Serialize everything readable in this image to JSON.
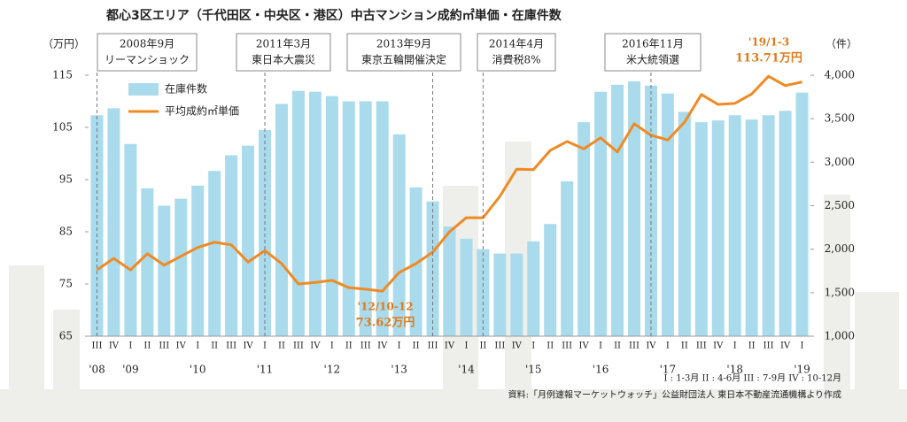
{
  "chart_data": {
    "type": "bar-line",
    "title": "都心3区エリア（千代田区・中央区・港区）中古マンション成約㎡単価・在庫件数",
    "y_unit": "（万円）",
    "y2_unit": "（件）",
    "categories": [
      "III",
      "IV",
      "I",
      "II",
      "III",
      "IV",
      "I",
      "II",
      "III",
      "IV",
      "I",
      "II",
      "III",
      "IV",
      "I",
      "II",
      "III",
      "IV",
      "I",
      "II",
      "III",
      "IV",
      "I",
      "II",
      "III",
      "IV",
      "I",
      "II",
      "III",
      "IV",
      "I",
      "II",
      "III",
      "IV",
      "I",
      "II",
      "III",
      "IV",
      "I",
      "II",
      "III",
      "IV",
      "I"
    ],
    "year_labels": [
      "'08",
      null,
      "'09",
      null,
      null,
      null,
      "'10",
      null,
      null,
      null,
      "'11",
      null,
      null,
      null,
      "'12",
      null,
      null,
      null,
      "'13",
      null,
      null,
      null,
      "'14",
      null,
      null,
      null,
      "'15",
      null,
      null,
      null,
      "'16",
      null,
      null,
      null,
      "'17",
      null,
      null,
      null,
      "'18",
      null,
      null,
      null,
      "'19"
    ],
    "series": [
      {
        "name": "在庫件数",
        "type": "bar",
        "axis": "y2",
        "color": "#a9dbed",
        "values": [
          3540,
          3620,
          3210,
          2700,
          2500,
          2580,
          2730,
          2900,
          3080,
          3190,
          3370,
          3670,
          3820,
          3810,
          3760,
          3700,
          3700,
          3700,
          3320,
          2710,
          2550,
          2260,
          2120,
          2000,
          1950,
          1950,
          2090,
          2290,
          2780,
          3460,
          3810,
          3890,
          3930,
          3880,
          3790,
          3580,
          3460,
          3480,
          3540,
          3490,
          3540,
          3590,
          3800
        ]
      },
      {
        "name": "平均成約㎡単価",
        "type": "line",
        "axis": "y",
        "color": "#f08a24",
        "values": [
          77.7,
          79.9,
          77.7,
          80.8,
          78.6,
          80.3,
          82.0,
          83.0,
          82.5,
          79.2,
          81.4,
          78.9,
          75.0,
          75.3,
          75.7,
          74.3,
          74.0,
          73.62,
          77.2,
          78.9,
          81.1,
          85.0,
          87.7,
          87.7,
          91.8,
          97.0,
          96.9,
          100.6,
          102.3,
          100.9,
          103.0,
          100.3,
          105.7,
          103.5,
          102.6,
          106.0,
          111.3,
          109.4,
          109.6,
          111.4,
          114.8,
          113.0,
          113.71
        ]
      }
    ],
    "ylim": [
      65,
      115
    ],
    "yticks": [
      65,
      75,
      85,
      95,
      105,
      115
    ],
    "y2lim": [
      1000,
      4000
    ],
    "y2ticks": [
      {
        "value": 1000,
        "label": "1,000"
      },
      {
        "value": 1500,
        "label": "1,500"
      },
      {
        "value": 2000,
        "label": "2,000"
      },
      {
        "value": 2500,
        "label": "2,500"
      },
      {
        "value": 3000,
        "label": "3,000"
      },
      {
        "value": 3500,
        "label": "3,500"
      },
      {
        "value": 4000,
        "label": "4,000"
      }
    ],
    "events": [
      {
        "date": "2008年9月",
        "label": "リーマンショック"
      },
      {
        "date": "2011年3月",
        "label": "東日本大震災"
      },
      {
        "date": "2013年9月",
        "label": "東京五輪開催決定"
      },
      {
        "date": "2014年4月",
        "label": "消費税8%"
      },
      {
        "date": "2016年11月",
        "label": "米大統領選"
      }
    ],
    "annotations": [
      {
        "period": "'12/10-12",
        "text": "73.62万円"
      },
      {
        "period": "'19/1-3",
        "text": "113.71万円"
      }
    ],
    "quarter_note": "I : 1-3月  II : 4-6月  III : 7-9月  IV : 10-12月",
    "source": "資料:「月例速報マーケットウォッチ」公益財団法人 東日本不動産流通機構より作成"
  }
}
